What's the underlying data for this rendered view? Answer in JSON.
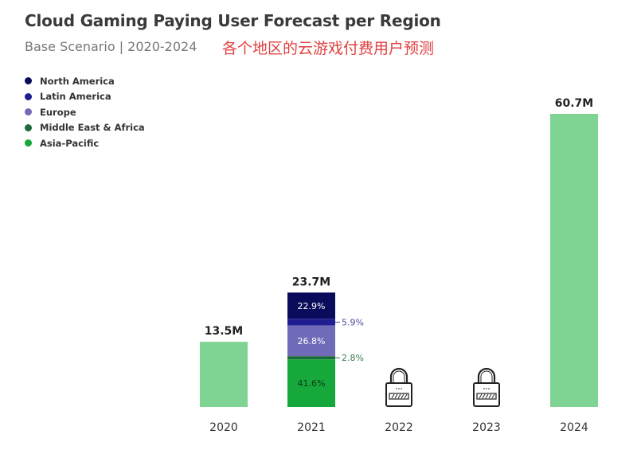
{
  "chart_data": {
    "type": "bar",
    "title": "Cloud Gaming Paying User Forecast per Region",
    "subtitle": "Base Scenario | 2020-2024",
    "annotation": "各个地区的云游戏付费用户预测",
    "categories": [
      "2020",
      "2021",
      "2022",
      "2023",
      "2024"
    ],
    "totals": [
      13.5,
      23.7,
      null,
      null,
      60.7
    ],
    "total_labels": [
      "13.5M",
      "23.7M",
      "",
      "",
      "60.7M"
    ],
    "locked": [
      false,
      false,
      true,
      true,
      false
    ],
    "unit": "M",
    "total_bar_color": "#7fd493",
    "legend": [
      {
        "name": "North America",
        "color": "#0b0b5c"
      },
      {
        "name": "Latin America",
        "color": "#1e1e90"
      },
      {
        "name": "Europe",
        "color": "#6f6bb8"
      },
      {
        "name": "Middle East & Africa",
        "color": "#1d6a3a"
      },
      {
        "name": "Asia-Pacific",
        "color": "#17a83b"
      }
    ],
    "breakdown_2021": [
      {
        "region": "North America",
        "share": 22.9,
        "label": "22.9%",
        "color": "#0b0b5c",
        "label_inside": true,
        "text_color": "#ffffff"
      },
      {
        "region": "Latin America",
        "share": 5.9,
        "label": "5.9%",
        "color": "#1e1e90",
        "label_inside": false,
        "text_color": "#4a4a9a"
      },
      {
        "region": "Europe",
        "share": 26.8,
        "label": "26.8%",
        "color": "#6f6bb8",
        "label_inside": true,
        "text_color": "#ffffff"
      },
      {
        "region": "Middle East & Africa",
        "share": 2.8,
        "label": "2.8%",
        "color": "#1d6a3a",
        "label_inside": false,
        "text_color": "#3a7a50"
      },
      {
        "region": "Asia-Pacific",
        "share": 41.6,
        "label": "41.6%",
        "color": "#17a83b",
        "label_inside": true,
        "text_color": "#0a3a15"
      }
    ],
    "ylim": [
      0,
      60.7
    ],
    "grid": false,
    "legend_position": "top-left"
  }
}
